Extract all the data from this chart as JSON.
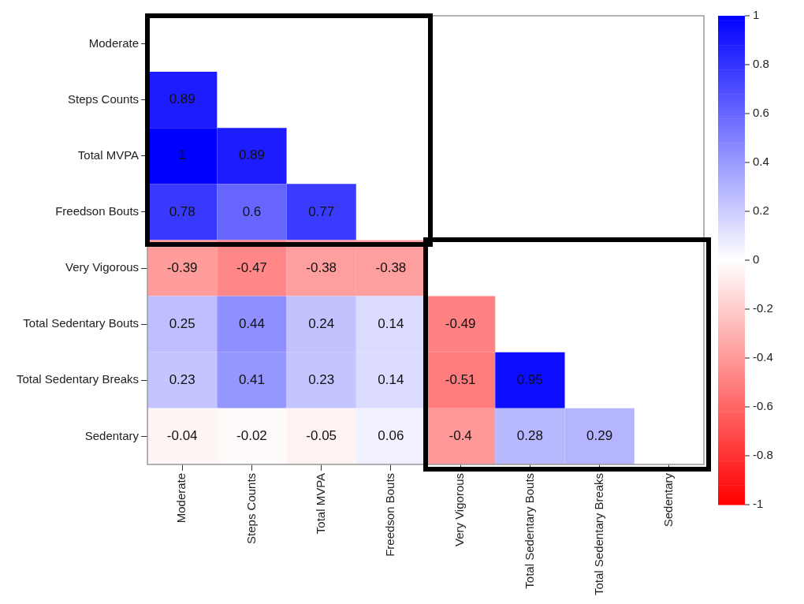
{
  "chart_data": {
    "type": "heatmap",
    "categories": [
      "Moderate",
      "Steps Counts",
      "Total MVPA",
      "Freedson Bouts",
      "Very Vigorous",
      "Total Sedentary Bouts",
      "Total Sedentary Breaks",
      "Sedentary"
    ],
    "y_categories": [
      "Moderate",
      "Steps Counts",
      "Total MVPA",
      "Freedson Bouts",
      "Very Vigorous",
      "Total Sedentary Bouts",
      "Total Sedentary Breaks",
      "Sedentary"
    ],
    "cells": [
      [
        null,
        null,
        null,
        null,
        null,
        null,
        null,
        null
      ],
      [
        0.89,
        null,
        null,
        null,
        null,
        null,
        null,
        null
      ],
      [
        1,
        0.89,
        null,
        null,
        null,
        null,
        null,
        null
      ],
      [
        0.78,
        0.6,
        0.77,
        null,
        null,
        null,
        null,
        null
      ],
      [
        -0.39,
        -0.47,
        -0.38,
        -0.38,
        null,
        null,
        null,
        null
      ],
      [
        0.25,
        0.44,
        0.24,
        0.14,
        -0.49,
        null,
        null,
        null
      ],
      [
        0.23,
        0.41,
        0.23,
        0.14,
        -0.51,
        0.95,
        null,
        null
      ],
      [
        -0.04,
        -0.02,
        -0.05,
        0.06,
        -0.4,
        0.28,
        0.29,
        null
      ]
    ],
    "clim": [
      -1,
      1
    ],
    "cticks": [
      -1,
      -0.8,
      -0.6,
      -0.4,
      -0.2,
      0,
      0.2,
      0.4,
      0.6,
      0.8,
      1
    ],
    "data_labels": true
  }
}
